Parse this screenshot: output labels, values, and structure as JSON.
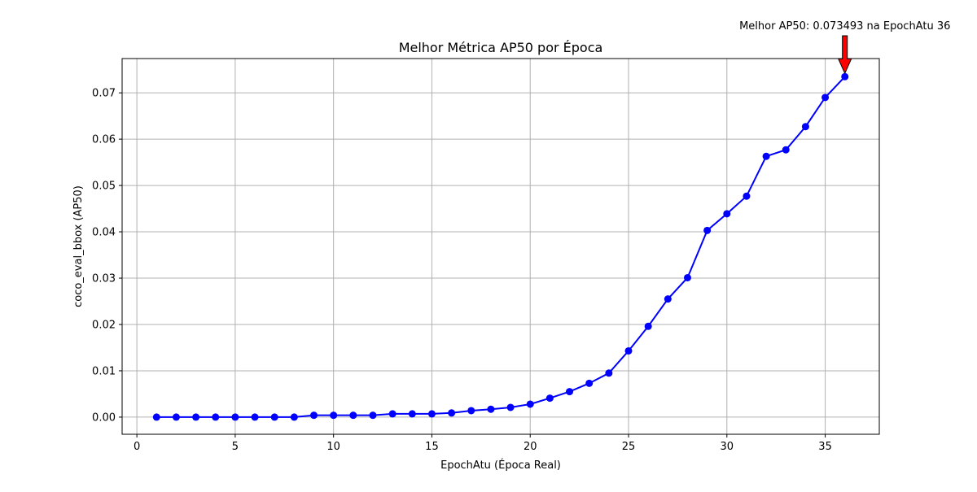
{
  "chart_data": {
    "type": "line",
    "title": "Melhor Métrica AP50 por Época",
    "xlabel": "EpochAtu (Época Real)",
    "ylabel": "coco_eval_bbox (AP50)",
    "xlim": [
      -0.75,
      37.75
    ],
    "ylim": [
      -0.0037,
      0.0774
    ],
    "x_ticks": [
      0,
      5,
      10,
      15,
      20,
      25,
      30,
      35
    ],
    "y_ticks": [
      0.0,
      0.01,
      0.02,
      0.03,
      0.04,
      0.05,
      0.06,
      0.07
    ],
    "y_tick_labels": [
      "0.00",
      "0.01",
      "0.02",
      "0.03",
      "0.04",
      "0.05",
      "0.06",
      "0.07"
    ],
    "grid": true,
    "series": [
      {
        "color": "#0000ff",
        "marker": "circle",
        "x": [
          1,
          2,
          3,
          4,
          5,
          6,
          7,
          8,
          9,
          10,
          11,
          12,
          13,
          14,
          15,
          16,
          17,
          18,
          19,
          20,
          21,
          22,
          23,
          24,
          25,
          26,
          27,
          28,
          29,
          30,
          31,
          32,
          33,
          34,
          35,
          36
        ],
        "y": [
          0.0,
          0.0,
          0.0,
          0.0,
          0.0,
          0.0,
          0.0,
          0.0,
          0.0004,
          0.0004,
          0.0004,
          0.0004,
          0.0007,
          0.0007,
          0.0007,
          0.0009,
          0.0014,
          0.0017,
          0.0021,
          0.0028,
          0.0041,
          0.0055,
          0.0073,
          0.0095,
          0.0143,
          0.0196,
          0.0255,
          0.0301,
          0.0403,
          0.0439,
          0.0477,
          0.0563,
          0.0577,
          0.0627,
          0.069,
          0.073493
        ]
      }
    ],
    "annotation": {
      "text": "Melhor AP50: 0.073493 na EpochAtu 36",
      "x": 36,
      "y": 0.073493,
      "arrow_color": "#ff0000"
    }
  }
}
